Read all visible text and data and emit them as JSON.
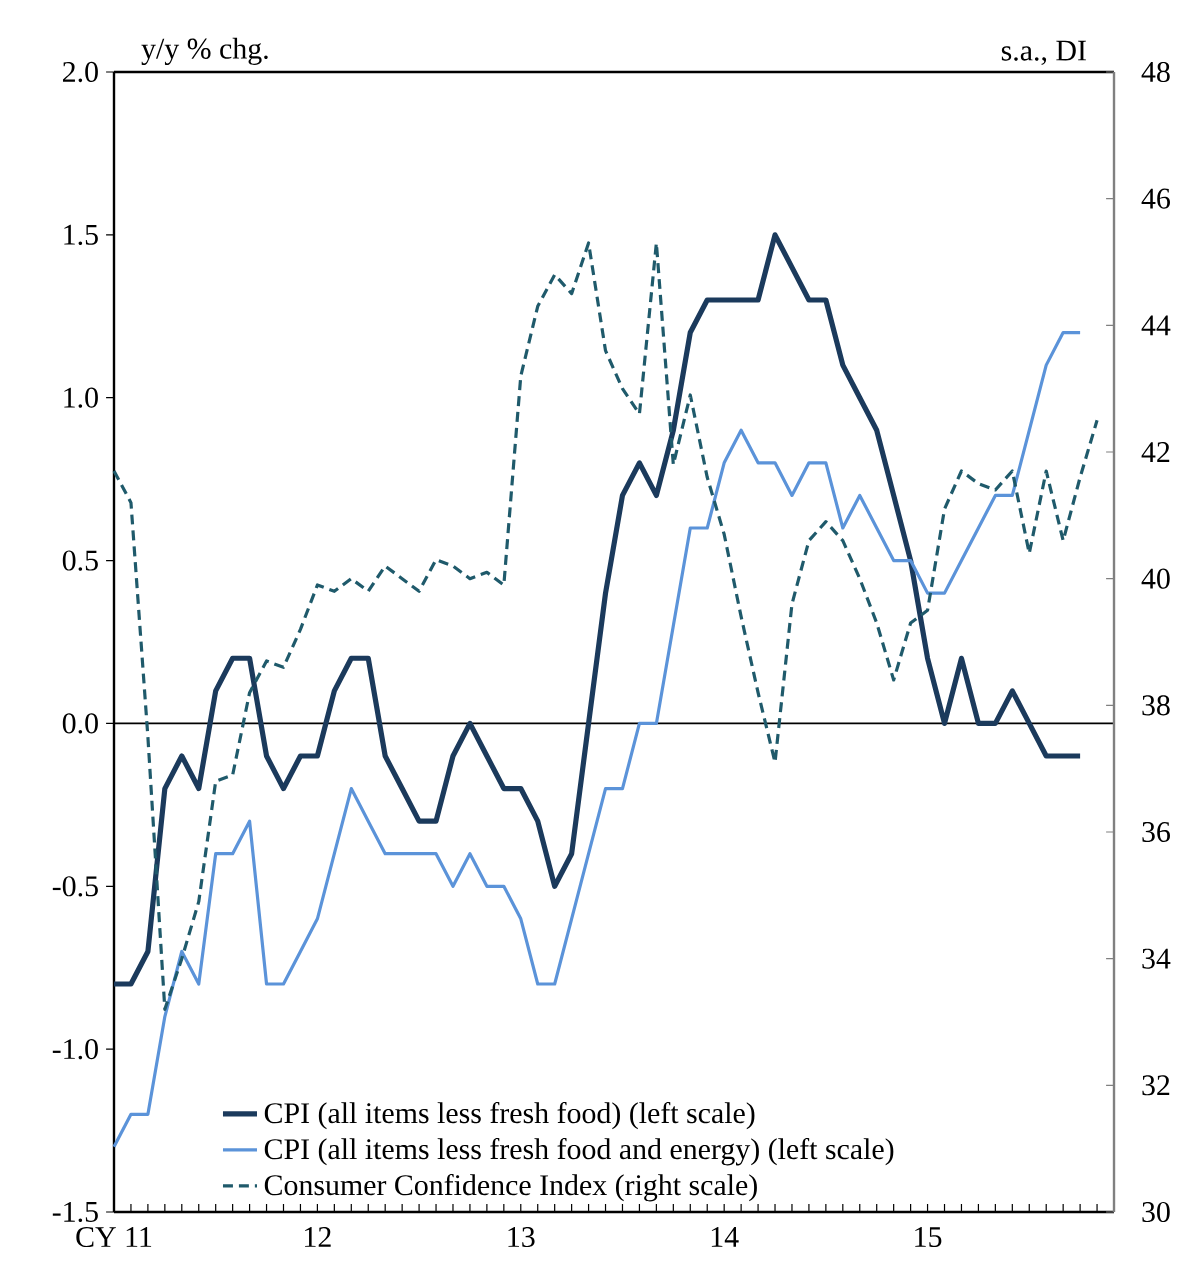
{
  "chart_data": {
    "type": "line",
    "ylabel": "y/y % chg.",
    "y2label": "s.a., DI",
    "x": [
      "2011-01",
      "2011-02",
      "2011-03",
      "2011-04",
      "2011-05",
      "2011-06",
      "2011-07",
      "2011-08",
      "2011-09",
      "2011-10",
      "2011-11",
      "2011-12",
      "2012-01",
      "2012-02",
      "2012-03",
      "2012-04",
      "2012-05",
      "2012-06",
      "2012-07",
      "2012-08",
      "2012-09",
      "2012-10",
      "2012-11",
      "2012-12",
      "2013-01",
      "2013-02",
      "2013-03",
      "2013-04",
      "2013-05",
      "2013-06",
      "2013-07",
      "2013-08",
      "2013-09",
      "2013-10",
      "2013-11",
      "2013-12",
      "2014-01",
      "2014-02",
      "2014-03",
      "2014-04",
      "2014-05",
      "2014-06",
      "2014-07",
      "2014-08",
      "2014-09",
      "2014-10",
      "2014-11",
      "2014-12",
      "2015-01",
      "2015-02",
      "2015-03",
      "2015-04",
      "2015-05",
      "2015-06",
      "2015-07",
      "2015-08",
      "2015-09",
      "2015-10",
      "2015-11"
    ],
    "xlim": [
      "2011-01",
      "2015-12"
    ],
    "xticks": [
      {
        "value": "2011-01",
        "label": "CY  11"
      },
      {
        "value": "2011-02",
        "label": null
      },
      {
        "value": "2011-03",
        "label": null
      },
      {
        "value": "2011-04",
        "label": null
      },
      {
        "value": "2011-05",
        "label": null
      },
      {
        "value": "2011-06",
        "label": null
      },
      {
        "value": "2011-07",
        "label": null
      },
      {
        "value": "2011-08",
        "label": null
      },
      {
        "value": "2011-09",
        "label": null
      },
      {
        "value": "2011-10",
        "label": null
      },
      {
        "value": "2011-11",
        "label": null
      },
      {
        "value": "2011-12",
        "label": null
      },
      {
        "value": "2012-01",
        "label": "12"
      },
      {
        "value": "2012-02",
        "label": null
      },
      {
        "value": "2012-03",
        "label": null
      },
      {
        "value": "2012-04",
        "label": null
      },
      {
        "value": "2012-05",
        "label": null
      },
      {
        "value": "2012-06",
        "label": null
      },
      {
        "value": "2012-07",
        "label": null
      },
      {
        "value": "2012-08",
        "label": null
      },
      {
        "value": "2012-09",
        "label": null
      },
      {
        "value": "2012-10",
        "label": null
      },
      {
        "value": "2012-11",
        "label": null
      },
      {
        "value": "2012-12",
        "label": null
      },
      {
        "value": "2013-01",
        "label": "13"
      },
      {
        "value": "2013-02",
        "label": null
      },
      {
        "value": "2013-03",
        "label": null
      },
      {
        "value": "2013-04",
        "label": null
      },
      {
        "value": "2013-05",
        "label": null
      },
      {
        "value": "2013-06",
        "label": null
      },
      {
        "value": "2013-07",
        "label": null
      },
      {
        "value": "2013-08",
        "label": null
      },
      {
        "value": "2013-09",
        "label": null
      },
      {
        "value": "2013-10",
        "label": null
      },
      {
        "value": "2013-11",
        "label": null
      },
      {
        "value": "2013-12",
        "label": null
      },
      {
        "value": "2014-01",
        "label": "14"
      },
      {
        "value": "2014-02",
        "label": null
      },
      {
        "value": "2014-03",
        "label": null
      },
      {
        "value": "2014-04",
        "label": null
      },
      {
        "value": "2014-05",
        "label": null
      },
      {
        "value": "2014-06",
        "label": null
      },
      {
        "value": "2014-07",
        "label": null
      },
      {
        "value": "2014-08",
        "label": null
      },
      {
        "value": "2014-09",
        "label": null
      },
      {
        "value": "2014-10",
        "label": null
      },
      {
        "value": "2014-11",
        "label": null
      },
      {
        "value": "2014-12",
        "label": null
      },
      {
        "value": "2015-01",
        "label": "15"
      },
      {
        "value": "2015-02",
        "label": null
      },
      {
        "value": "2015-03",
        "label": null
      },
      {
        "value": "2015-04",
        "label": null
      },
      {
        "value": "2015-05",
        "label": null
      },
      {
        "value": "2015-06",
        "label": null
      },
      {
        "value": "2015-07",
        "label": null
      },
      {
        "value": "2015-08",
        "label": null
      },
      {
        "value": "2015-09",
        "label": null
      },
      {
        "value": "2015-10",
        "label": null
      },
      {
        "value": "2015-11",
        "label": null
      },
      {
        "value": "2015-12",
        "label": null
      }
    ],
    "ylim": [
      -1.5,
      2.0
    ],
    "yticks": [
      {
        "value": -1.5,
        "label": "-1.5"
      },
      {
        "value": -1.0,
        "label": "-1.0"
      },
      {
        "value": -0.5,
        "label": "-0.5"
      },
      {
        "value": 0,
        "label": "0.0"
      },
      {
        "value": 0.5,
        "label": "0.5"
      },
      {
        "value": 1.0,
        "label": "1.0"
      },
      {
        "value": 1.5,
        "label": "1.5"
      },
      {
        "value": 2.0,
        "label": "2.0"
      }
    ],
    "y2lim": [
      30,
      48
    ],
    "y2ticks": [
      30,
      32,
      34,
      36,
      38,
      40,
      42,
      44,
      46,
      48
    ],
    "ref_lines": [
      {
        "axis": "y",
        "value": 0,
        "color": "#000000"
      }
    ],
    "legend": "bottom",
    "series": [
      {
        "name": "CPI (all items less fresh food) (left scale)",
        "color": "#1b3a5c",
        "line_style": "solid",
        "values": [
          -0.8,
          -0.8,
          -0.7,
          -0.2,
          -0.1,
          -0.2,
          0.1,
          0.2,
          0.2,
          -0.1,
          -0.2,
          -0.1,
          -0.1,
          0.1,
          0.2,
          0.2,
          -0.1,
          -0.2,
          -0.3,
          -0.3,
          -0.1,
          0.0,
          -0.1,
          -0.2,
          -0.2,
          -0.3,
          -0.5,
          -0.4,
          0.0,
          0.4,
          0.7,
          0.8,
          0.7,
          0.9,
          1.2,
          1.3,
          1.3,
          1.3,
          1.3,
          1.5,
          1.4,
          1.3,
          1.3,
          1.1,
          1.0,
          0.9,
          0.7,
          0.5,
          0.2,
          0.0,
          0.2,
          0.0,
          0.0,
          0.1,
          0.0,
          -0.1,
          -0.1,
          -0.1,
          null
        ]
      },
      {
        "name": "CPI (all items less fresh food and energy) (left scale)",
        "color": "#5b93d9",
        "line_style": "solid",
        "values": [
          -1.3,
          -1.2,
          -1.2,
          -0.9,
          -0.7,
          -0.8,
          -0.4,
          -0.4,
          -0.3,
          -0.8,
          -0.8,
          -0.7,
          -0.6,
          -0.4,
          -0.2,
          -0.3,
          -0.4,
          -0.4,
          -0.4,
          -0.4,
          -0.5,
          -0.4,
          -0.5,
          -0.5,
          -0.6,
          -0.8,
          -0.8,
          -0.6,
          -0.4,
          -0.2,
          -0.2,
          0.0,
          0.0,
          0.3,
          0.6,
          0.6,
          0.8,
          0.9,
          0.8,
          0.8,
          0.7,
          0.8,
          0.8,
          0.6,
          0.7,
          0.6,
          0.5,
          0.5,
          0.4,
          0.4,
          0.5,
          0.6,
          0.7,
          0.7,
          0.9,
          1.1,
          1.2,
          1.2,
          null
        ]
      },
      {
        "name": "Consumer Confidence Index (right scale)",
        "color": "#1f5a6b",
        "line_style": "dashed",
        "axis": "y2",
        "values": [
          41.7,
          41.2,
          37.5,
          33.2,
          34.0,
          34.9,
          36.8,
          36.9,
          38.2,
          38.7,
          38.6,
          39.2,
          39.9,
          39.8,
          40.0,
          39.8,
          40.2,
          40.0,
          39.8,
          40.3,
          40.2,
          40.0,
          40.1,
          39.9,
          43.2,
          44.3,
          44.8,
          44.5,
          45.3,
          43.6,
          43.0,
          42.6,
          45.3,
          41.8,
          42.9,
          41.6,
          40.7,
          39.4,
          38.2,
          37.1,
          39.6,
          40.6,
          40.9,
          40.6,
          40.0,
          39.3,
          38.4,
          39.3,
          39.5,
          41.1,
          41.7,
          41.5,
          41.4,
          41.7,
          40.4,
          41.7,
          40.6,
          41.6,
          42.5
        ]
      }
    ]
  }
}
